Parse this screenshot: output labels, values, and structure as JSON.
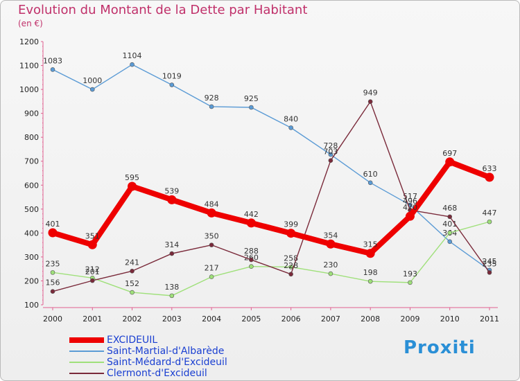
{
  "header": {
    "title": "Evolution du Montant de la Dette par Habitant",
    "unit": "(en €)"
  },
  "logo": {
    "text": "Proxiti"
  },
  "chart_data": {
    "type": "line",
    "title": "Evolution du Montant de la Dette par Habitant",
    "subtitle": "(en €)",
    "categories": [
      "2000",
      "2001",
      "2002",
      "2003",
      "2004",
      "2005",
      "2006",
      "2007",
      "2008",
      "2009",
      "2010",
      "2011"
    ],
    "ylim": [
      100,
      1200
    ],
    "yticks": [
      100,
      200,
      300,
      400,
      500,
      600,
      700,
      800,
      900,
      1000,
      1100,
      1200
    ],
    "grid": false,
    "legend_position": "bottom-left",
    "series": [
      {
        "name": "Saint-Martial-d'Albarède",
        "color": "#5b9bd5",
        "values": [
          1083,
          1000,
          1104,
          1019,
          928,
          925,
          840,
          728,
          610,
          517,
          364,
          245
        ]
      },
      {
        "name": "Saint-Médard-d'Excideuil",
        "color": "#9fe07a",
        "values": [
          235,
          212,
          152,
          138,
          217,
          260,
          258,
          230,
          198,
          193,
          401,
          447
        ]
      },
      {
        "name": "Clermont-d'Excideuil",
        "color": "#7a2a3a",
        "values": [
          156,
          201,
          241,
          314,
          350,
          288,
          228,
          703,
          949,
          496,
          468,
          235
        ]
      },
      {
        "name": "EXCIDEUIL",
        "color": "#ee0000",
        "values": [
          401,
          351,
          595,
          539,
          484,
          442,
          399,
          354,
          315,
          470,
          697,
          633
        ]
      }
    ]
  }
}
